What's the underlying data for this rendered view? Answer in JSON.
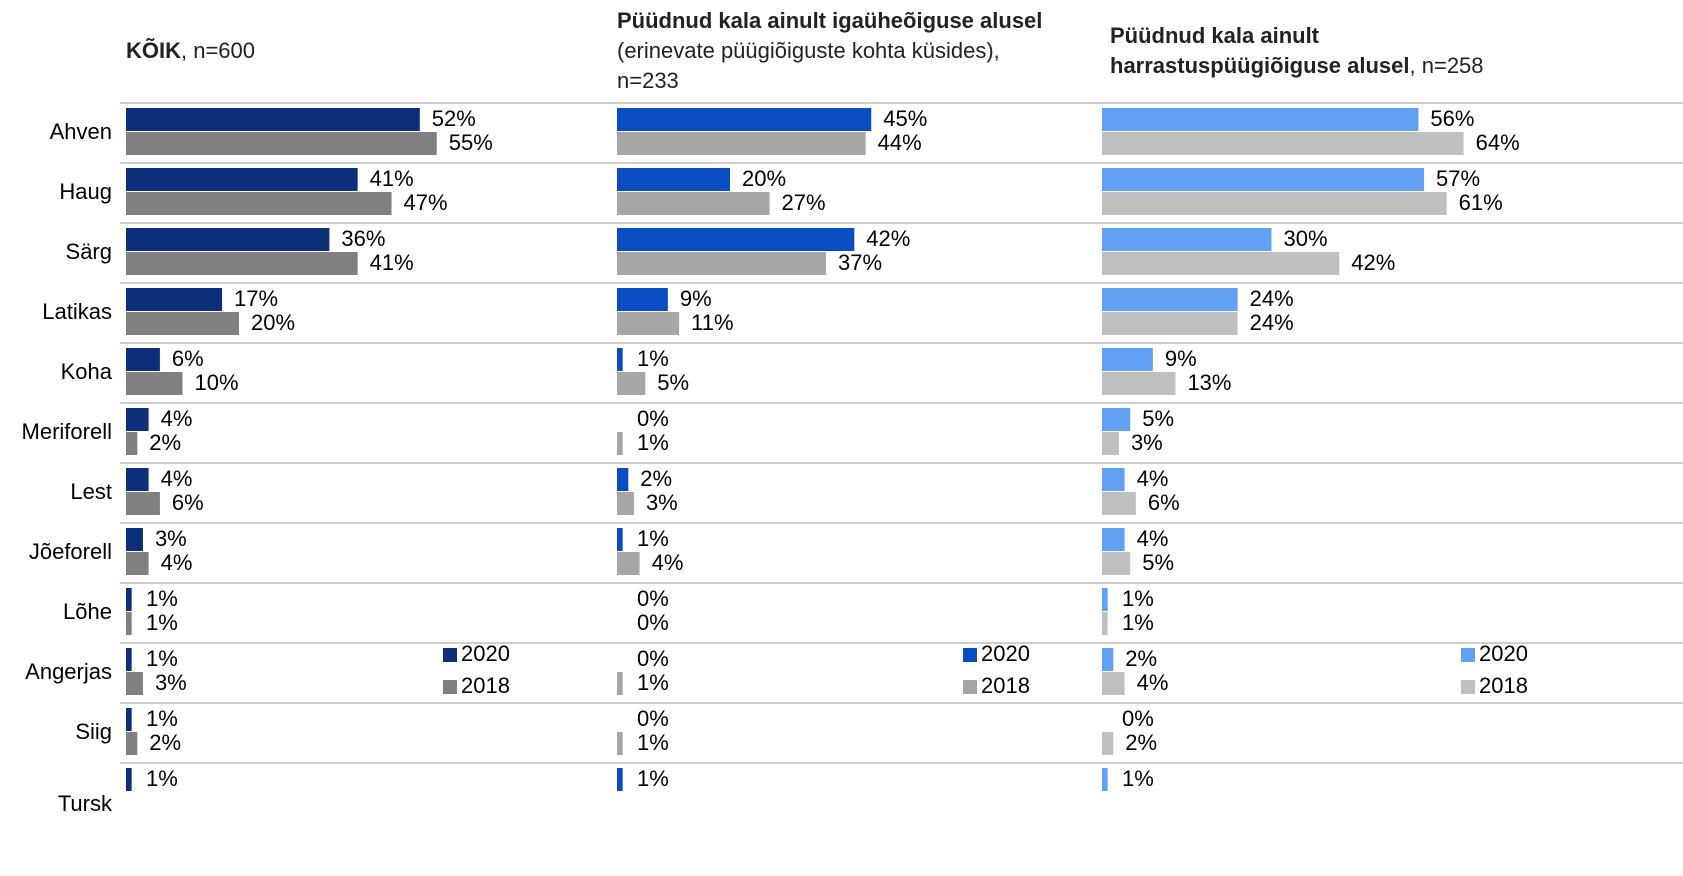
{
  "chart_data": [
    {
      "type": "bar",
      "title_bold": "KÕIK",
      "title_rest": ", n=600",
      "categories": [
        "Ahven",
        "Haug",
        "Särg",
        "Latikas",
        "Koha",
        "Meriforell",
        "Lest",
        "Jõeforell",
        "Lõhe",
        "Angerjas",
        "Siig",
        "Tursk"
      ],
      "series": [
        {
          "name": "2020",
          "color": "#0d2f7a",
          "values": [
            52,
            41,
            36,
            17,
            6,
            4,
            4,
            3,
            1,
            1,
            1,
            1
          ],
          "value_labels": [
            "52%",
            "41%",
            "36%",
            "17%",
            "6%",
            "4%",
            "4%",
            "3%",
            "1%",
            "1%",
            "1%",
            "1%"
          ]
        },
        {
          "name": "2018",
          "color": "#808080",
          "values": [
            55,
            47,
            41,
            20,
            10,
            2,
            6,
            4,
            1,
            3,
            2,
            null
          ],
          "value_labels": [
            "55%",
            "47%",
            "41%",
            "20%",
            "10%",
            "2%",
            "6%",
            "4%",
            "1%",
            "3%",
            "2%",
            null
          ]
        }
      ]
    },
    {
      "type": "bar",
      "title_bold": "Püüdnud kala ainult igaüheõiguse alusel",
      "title_rest": " (erinevate püügiõiguste kohta küsides), n=233",
      "series": [
        {
          "name": "2020",
          "color": "#0a4cc2",
          "values": [
            45,
            20,
            42,
            9,
            1,
            0,
            2,
            1,
            0,
            0,
            0,
            1
          ],
          "value_labels": [
            "45%",
            "20%",
            "42%",
            "9%",
            "1%",
            "0%",
            "2%",
            "1%",
            "0%",
            "0%",
            "0%",
            "1%"
          ]
        },
        {
          "name": "2018",
          "color": "#a6a6a6",
          "values": [
            44,
            27,
            37,
            11,
            5,
            1,
            3,
            4,
            0,
            1,
            1,
            null
          ],
          "value_labels": [
            "44%",
            "27%",
            "37%",
            "11%",
            "5%",
            "1%",
            "3%",
            "4%",
            "0%",
            "1%",
            "1%",
            null
          ]
        }
      ]
    },
    {
      "type": "bar",
      "title_bold": "Püüdnud kala ainult harrastuspüügiõiguse alusel",
      "title_rest": ", n=258",
      "series": [
        {
          "name": "2020",
          "color": "#62a0f3",
          "values": [
            56,
            57,
            30,
            24,
            9,
            5,
            4,
            4,
            1,
            2,
            0,
            1
          ],
          "value_labels": [
            "56%",
            "57%",
            "30%",
            "24%",
            "9%",
            "5%",
            "4%",
            "4%",
            "1%",
            "2%",
            "0%",
            "1%"
          ]
        },
        {
          "name": "2018",
          "color": "#c0c0c0",
          "values": [
            64,
            61,
            42,
            24,
            13,
            3,
            6,
            5,
            1,
            4,
            2,
            null
          ],
          "value_labels": [
            "64%",
            "61%",
            "42%",
            "24%",
            "13%",
            "3%",
            "6%",
            "5%",
            "1%",
            "4%",
            "2%",
            null
          ]
        }
      ]
    }
  ]
}
